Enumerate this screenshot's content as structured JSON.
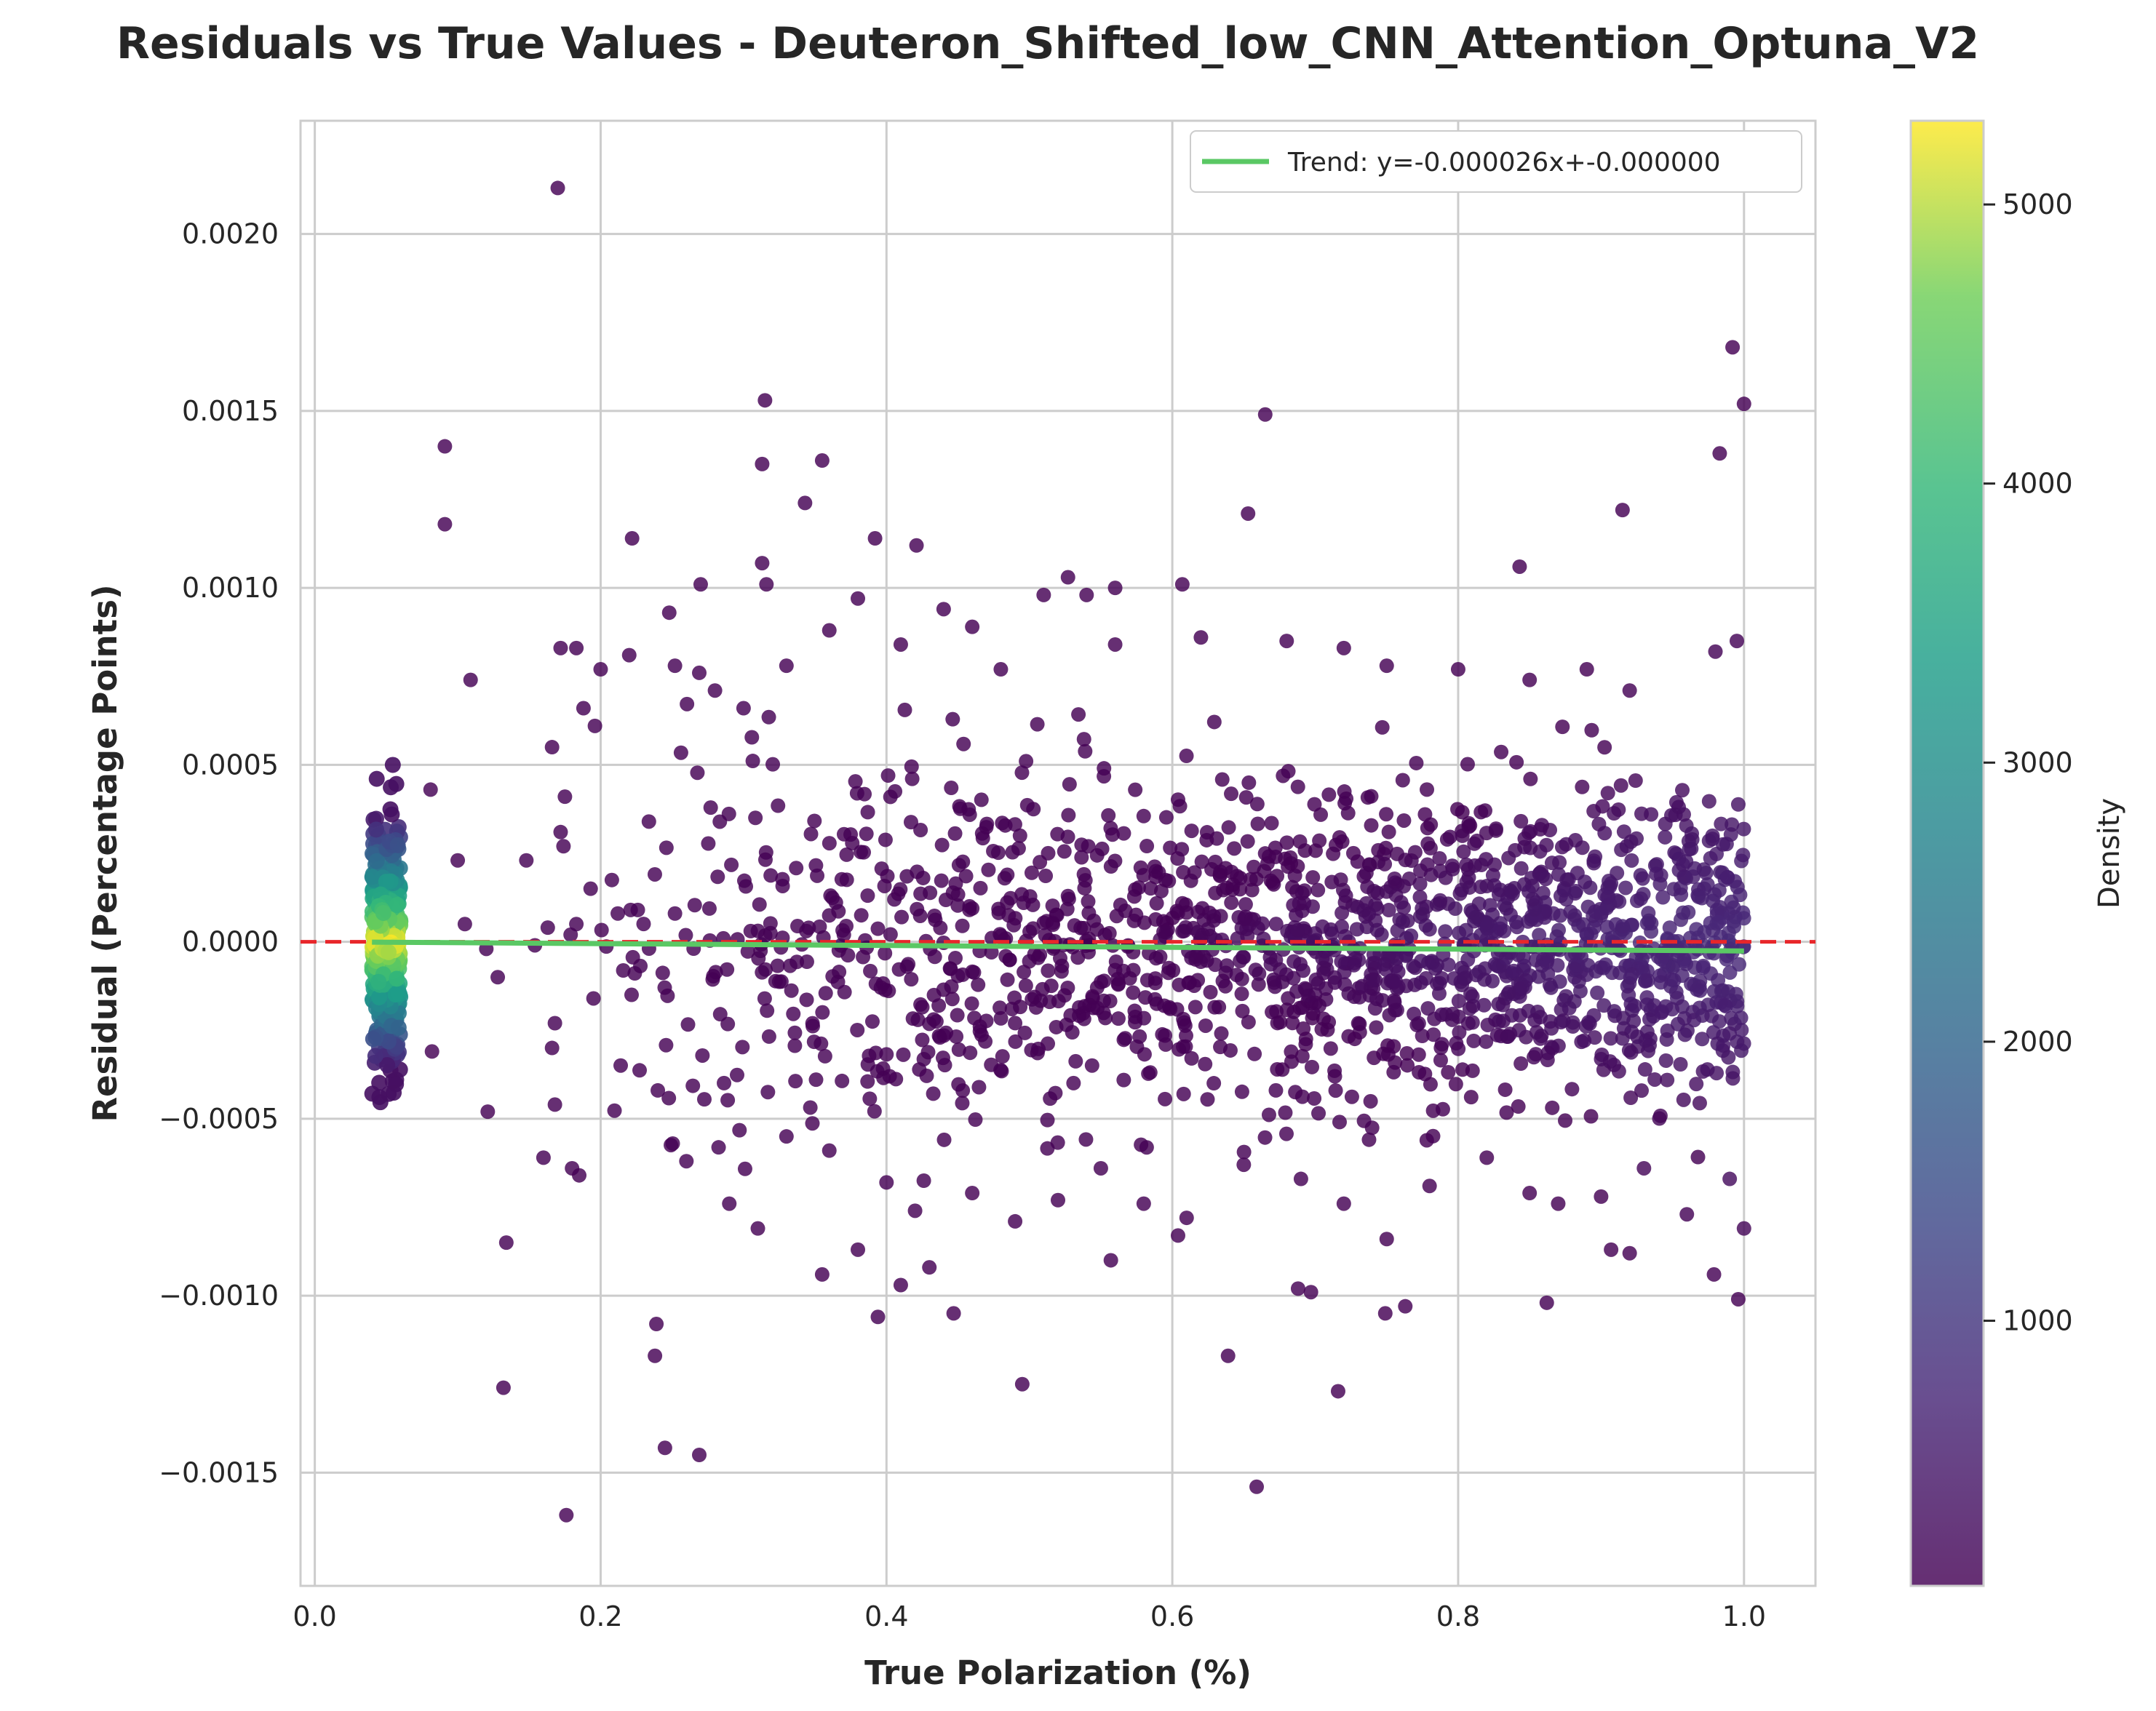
{
  "chart_data": {
    "type": "scatter",
    "title": "Residuals vs True Values - Deuteron_Shifted_low_CNN_Attention_Optuna_V2",
    "xlabel": "True Polarization (%)",
    "ylabel": "Residual (Percentage Points)",
    "xlim": [
      -0.01,
      1.05
    ],
    "ylim": [
      -0.00182,
      0.00232
    ],
    "x_ticks": [
      0.0,
      0.2,
      0.4,
      0.6,
      0.8,
      1.0
    ],
    "x_tick_labels": [
      "0.0",
      "0.2",
      "0.4",
      "0.6",
      "0.8",
      "1.0"
    ],
    "y_ticks": [
      -0.0015,
      -0.001,
      -0.0005,
      0.0,
      0.0005,
      0.001,
      0.0015,
      0.002
    ],
    "y_tick_labels": [
      "−0.0015",
      "−0.0010",
      "−0.0005",
      "0.0000",
      "0.0005",
      "0.0010",
      "0.0015",
      "0.0020"
    ],
    "grid": true,
    "legend": {
      "position": "top-right",
      "entries": [
        "Trend: y=-0.000026x+-0.000000"
      ]
    },
    "trend": {
      "slope": -2.6e-05,
      "intercept": 0.0,
      "x_range": [
        0.04,
        1.0
      ],
      "color": "#5ac864"
    },
    "reference_line": {
      "y": 0.0,
      "style": "dashed",
      "color": "#e8262a"
    },
    "colorbar": {
      "label": "Density",
      "colormap": "viridis",
      "range": [
        50,
        5300
      ],
      "ticks": [
        1000,
        2000,
        3000,
        4000,
        5000
      ],
      "tick_labels": [
        "1000",
        "2000",
        "3000",
        "4000",
        "5000"
      ]
    },
    "points": [
      [
        0.17,
        0.00213
      ],
      [
        0.992,
        0.00168
      ],
      [
        1.0,
        0.00152
      ],
      [
        0.983,
        0.00138
      ],
      [
        0.665,
        0.00149
      ],
      [
        0.315,
        0.00153
      ],
      [
        0.091,
        0.0014
      ],
      [
        0.091,
        0.00118
      ],
      [
        0.355,
        0.00136
      ],
      [
        0.313,
        0.00135
      ],
      [
        0.915,
        0.00122
      ],
      [
        0.653,
        0.00121
      ],
      [
        0.343,
        0.00124
      ],
      [
        0.222,
        0.00114
      ],
      [
        0.392,
        0.00114
      ],
      [
        0.421,
        0.00112
      ],
      [
        0.843,
        0.00106
      ],
      [
        0.313,
        0.00107
      ],
      [
        0.527,
        0.00103
      ],
      [
        0.27,
        0.00101
      ],
      [
        0.316,
        0.00101
      ],
      [
        0.56,
        0.001
      ],
      [
        0.607,
        0.00101
      ],
      [
        0.109,
        0.00074
      ],
      [
        0.172,
        0.00083
      ],
      [
        0.183,
        0.00083
      ],
      [
        0.175,
        0.00041
      ],
      [
        0.081,
        0.00043
      ],
      [
        0.172,
        0.00031
      ],
      [
        0.174,
        0.00027
      ],
      [
        0.1,
        0.00023
      ],
      [
        0.148,
        0.00023
      ],
      [
        0.166,
        0.00055
      ],
      [
        0.188,
        0.00066
      ],
      [
        0.18,
        -0.00064
      ],
      [
        0.185,
        -0.00066
      ],
      [
        0.16,
        -0.00061
      ],
      [
        0.134,
        -0.00085
      ],
      [
        0.132,
        -0.00126
      ],
      [
        0.176,
        -0.00162
      ],
      [
        0.245,
        -0.00143
      ],
      [
        0.269,
        -0.00145
      ],
      [
        0.239,
        -0.00108
      ],
      [
        0.238,
        -0.00117
      ],
      [
        0.495,
        -0.00125
      ],
      [
        0.639,
        -0.00117
      ],
      [
        0.659,
        -0.00154
      ],
      [
        0.716,
        -0.00127
      ],
      [
        0.862,
        -0.00102
      ],
      [
        0.996,
        -0.00101
      ],
      [
        0.979,
        -0.00094
      ],
      [
        0.907,
        -0.00087
      ],
      [
        0.92,
        -0.00088
      ],
      [
        0.763,
        -0.00103
      ],
      [
        0.749,
        -0.00105
      ],
      [
        0.394,
        -0.00106
      ],
      [
        0.41,
        -0.00097
      ],
      [
        0.447,
        -0.00105
      ],
      [
        0.43,
        -0.00092
      ],
      [
        0.355,
        -0.00094
      ],
      [
        0.557,
        -0.0009
      ],
      [
        0.688,
        -0.00098
      ],
      [
        0.697,
        -0.00099
      ],
      [
        0.604,
        -0.00083
      ],
      [
        0.082,
        -0.00031
      ],
      [
        0.121,
        -0.00048
      ],
      [
        0.168,
        -0.00046
      ],
      [
        0.166,
        -0.0003
      ],
      [
        0.168,
        -0.00023
      ],
      [
        0.195,
        -0.00016
      ],
      [
        0.105,
        5e-05
      ],
      [
        0.12,
        -2e-05
      ],
      [
        0.128,
        -0.0001
      ],
      [
        0.154,
        -1e-05
      ],
      [
        0.163,
        4e-05
      ],
      [
        0.179,
        2e-05
      ],
      [
        0.183,
        5e-05
      ],
      [
        0.193,
        0.00015
      ],
      [
        0.212,
        8e-05
      ],
      [
        0.221,
        9e-05
      ],
      [
        0.226,
        9e-05
      ],
      [
        0.2,
        0.00077
      ],
      [
        0.22,
        0.00081
      ],
      [
        0.196,
        0.00061
      ],
      [
        0.248,
        0.00093
      ],
      [
        0.252,
        0.00078
      ],
      [
        0.269,
        0.00076
      ],
      [
        0.28,
        0.00071
      ],
      [
        0.3,
        0.00066
      ],
      [
        0.33,
        0.00078
      ],
      [
        0.36,
        0.00088
      ],
      [
        0.38,
        0.00097
      ],
      [
        0.41,
        0.00084
      ],
      [
        0.44,
        0.00094
      ],
      [
        0.46,
        0.00089
      ],
      [
        0.48,
        0.00077
      ],
      [
        0.51,
        0.00098
      ],
      [
        0.54,
        0.00098
      ],
      [
        0.56,
        0.00084
      ],
      [
        0.62,
        0.00086
      ],
      [
        0.68,
        0.00085
      ],
      [
        0.72,
        0.00083
      ],
      [
        0.75,
        0.00078
      ],
      [
        0.8,
        0.00077
      ],
      [
        0.85,
        0.00074
      ],
      [
        0.89,
        0.00077
      ],
      [
        0.92,
        0.00071
      ],
      [
        0.98,
        0.00082
      ],
      [
        0.995,
        0.00085
      ],
      [
        0.24,
        -0.00042
      ],
      [
        0.26,
        -0.00062
      ],
      [
        0.29,
        -0.00074
      ],
      [
        0.31,
        -0.00081
      ],
      [
        0.33,
        -0.00055
      ],
      [
        0.36,
        -0.00059
      ],
      [
        0.38,
        -0.00087
      ],
      [
        0.4,
        -0.00068
      ],
      [
        0.42,
        -0.00076
      ],
      [
        0.46,
        -0.00071
      ],
      [
        0.49,
        -0.00079
      ],
      [
        0.52,
        -0.00073
      ],
      [
        0.55,
        -0.00064
      ],
      [
        0.58,
        -0.00074
      ],
      [
        0.61,
        -0.00078
      ],
      [
        0.65,
        -0.00063
      ],
      [
        0.69,
        -0.00067
      ],
      [
        0.72,
        -0.00074
      ],
      [
        0.75,
        -0.00084
      ],
      [
        0.78,
        -0.00069
      ],
      [
        0.82,
        -0.00061
      ],
      [
        0.85,
        -0.00071
      ],
      [
        0.87,
        -0.00074
      ],
      [
        0.9,
        -0.00072
      ],
      [
        0.93,
        -0.00064
      ],
      [
        0.96,
        -0.00077
      ],
      [
        0.99,
        -0.00067
      ],
      [
        1.0,
        -0.00081
      ]
    ]
  }
}
